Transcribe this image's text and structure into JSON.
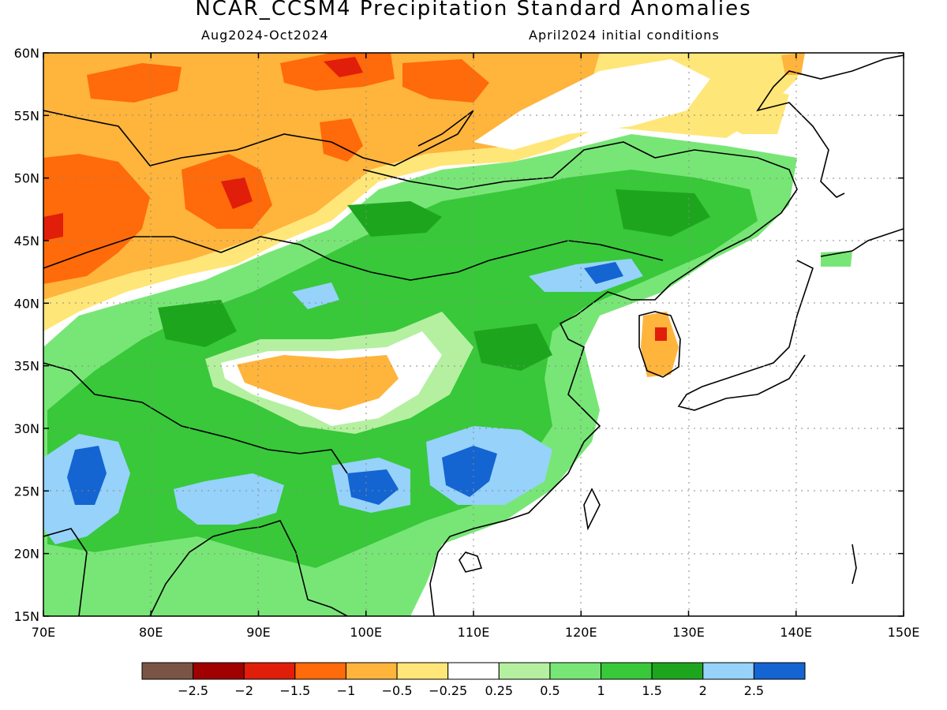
{
  "title": "NCAR_CCSM4 Precipitation Standard Anomalies",
  "subtitle_left": "Aug2024-Oct2024",
  "subtitle_right": "April2024 initial conditions",
  "map": {
    "lon_range": [
      70,
      150
    ],
    "lat_range": [
      15,
      60
    ],
    "lon_ticks": [
      "70E",
      "80E",
      "90E",
      "100E",
      "110E",
      "120E",
      "130E",
      "140E",
      "150E"
    ],
    "lat_ticks": [
      "15N",
      "20N",
      "25N",
      "30N",
      "35N",
      "40N",
      "45N",
      "50N",
      "55N",
      "60N"
    ],
    "grid": true,
    "ocean_masked": true
  },
  "colorbar": {
    "colors": [
      "#7a5545",
      "#a00000",
      "#e01e0a",
      "#ff6a0a",
      "#ffb43c",
      "#ffe678",
      "#ffffff",
      "#b4f0a0",
      "#78e676",
      "#38c83a",
      "#1ea51e",
      "#96d2fa",
      "#1464d2"
    ],
    "labels": [
      "-2.5",
      "-2",
      "-1.5",
      "-1",
      "-0.5",
      "-0.25",
      "0.25",
      "0.5",
      "1",
      "1.5",
      "2",
      "2.5"
    ]
  },
  "regions": [
    {
      "name": "northwest-dry",
      "level": -1,
      "color": "#ffb43c"
    },
    {
      "name": "kazakh-dry-core",
      "level": -1.5,
      "color": "#ff6a0a"
    },
    {
      "name": "tibet-dry-patch",
      "level": -0.5,
      "color": "#ffb43c"
    },
    {
      "name": "china-wet",
      "level": 1.5,
      "color": "#38c83a"
    },
    {
      "name": "south-china-wet-core",
      "level": 2.5,
      "color": "#1464d2"
    },
    {
      "name": "india-wet-core",
      "level": 2.5,
      "color": "#1464d2"
    },
    {
      "name": "korea-dry",
      "level": -0.5,
      "color": "#ffb43c"
    }
  ]
}
